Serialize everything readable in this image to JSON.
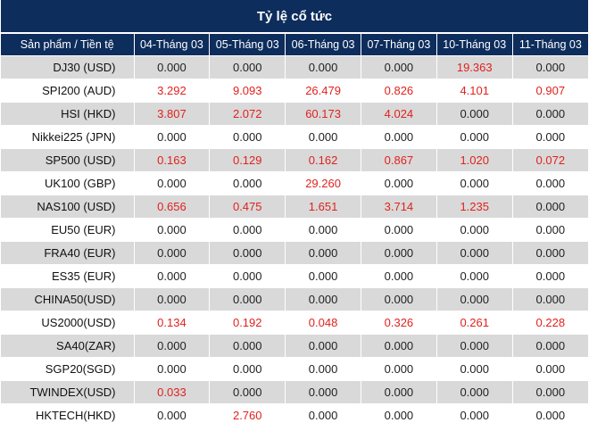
{
  "title": "Tỷ lệ cổ tức",
  "header": {
    "product": "Sản phẩm / Tiền tệ",
    "dates": [
      "04-Tháng 03",
      "05-Tháng 03",
      "06-Tháng 03",
      "07-Tháng 03",
      "10-Tháng 03",
      "11-Tháng 03"
    ]
  },
  "colors": {
    "header_bg": "#0d2d5c",
    "positive": "#e0221e",
    "stripe": "#d9d9d9"
  },
  "rows": [
    {
      "product": "DJ30 (USD)",
      "values": [
        "0.000",
        "0.000",
        "0.000",
        "0.000",
        "19.363",
        "0.000"
      ]
    },
    {
      "product": "SPI200 (AUD)",
      "values": [
        "3.292",
        "9.093",
        "26.479",
        "0.826",
        "4.101",
        "0.907"
      ]
    },
    {
      "product": "HSI (HKD)",
      "values": [
        "3.807",
        "2.072",
        "60.173",
        "4.024",
        "0.000",
        "0.000"
      ]
    },
    {
      "product": "Nikkei225 (JPN)",
      "values": [
        "0.000",
        "0.000",
        "0.000",
        "0.000",
        "0.000",
        "0.000"
      ]
    },
    {
      "product": "SP500 (USD)",
      "values": [
        "0.163",
        "0.129",
        "0.162",
        "0.867",
        "1.020",
        "0.072"
      ]
    },
    {
      "product": "UK100 (GBP)",
      "values": [
        "0.000",
        "0.000",
        "29.260",
        "0.000",
        "0.000",
        "0.000"
      ]
    },
    {
      "product": "NAS100 (USD)",
      "values": [
        "0.656",
        "0.475",
        "1.651",
        "3.714",
        "1.235",
        "0.000"
      ]
    },
    {
      "product": "EU50 (EUR)",
      "values": [
        "0.000",
        "0.000",
        "0.000",
        "0.000",
        "0.000",
        "0.000"
      ]
    },
    {
      "product": "FRA40 (EUR)",
      "values": [
        "0.000",
        "0.000",
        "0.000",
        "0.000",
        "0.000",
        "0.000"
      ]
    },
    {
      "product": "ES35 (EUR)",
      "values": [
        "0.000",
        "0.000",
        "0.000",
        "0.000",
        "0.000",
        "0.000"
      ]
    },
    {
      "product": "CHINA50(USD)",
      "values": [
        "0.000",
        "0.000",
        "0.000",
        "0.000",
        "0.000",
        "0.000"
      ]
    },
    {
      "product": "US2000(USD)",
      "values": [
        "0.134",
        "0.192",
        "0.048",
        "0.326",
        "0.261",
        "0.228"
      ]
    },
    {
      "product": "SA40(ZAR)",
      "values": [
        "0.000",
        "0.000",
        "0.000",
        "0.000",
        "0.000",
        "0.000"
      ]
    },
    {
      "product": "SGP20(SGD)",
      "values": [
        "0.000",
        "0.000",
        "0.000",
        "0.000",
        "0.000",
        "0.000"
      ]
    },
    {
      "product": "TWINDEX(USD)",
      "values": [
        "0.033",
        "0.000",
        "0.000",
        "0.000",
        "0.000",
        "0.000"
      ]
    },
    {
      "product": "HKTECH(HKD)",
      "values": [
        "0.000",
        "2.760",
        "0.000",
        "0.000",
        "0.000",
        "0.000"
      ]
    }
  ]
}
